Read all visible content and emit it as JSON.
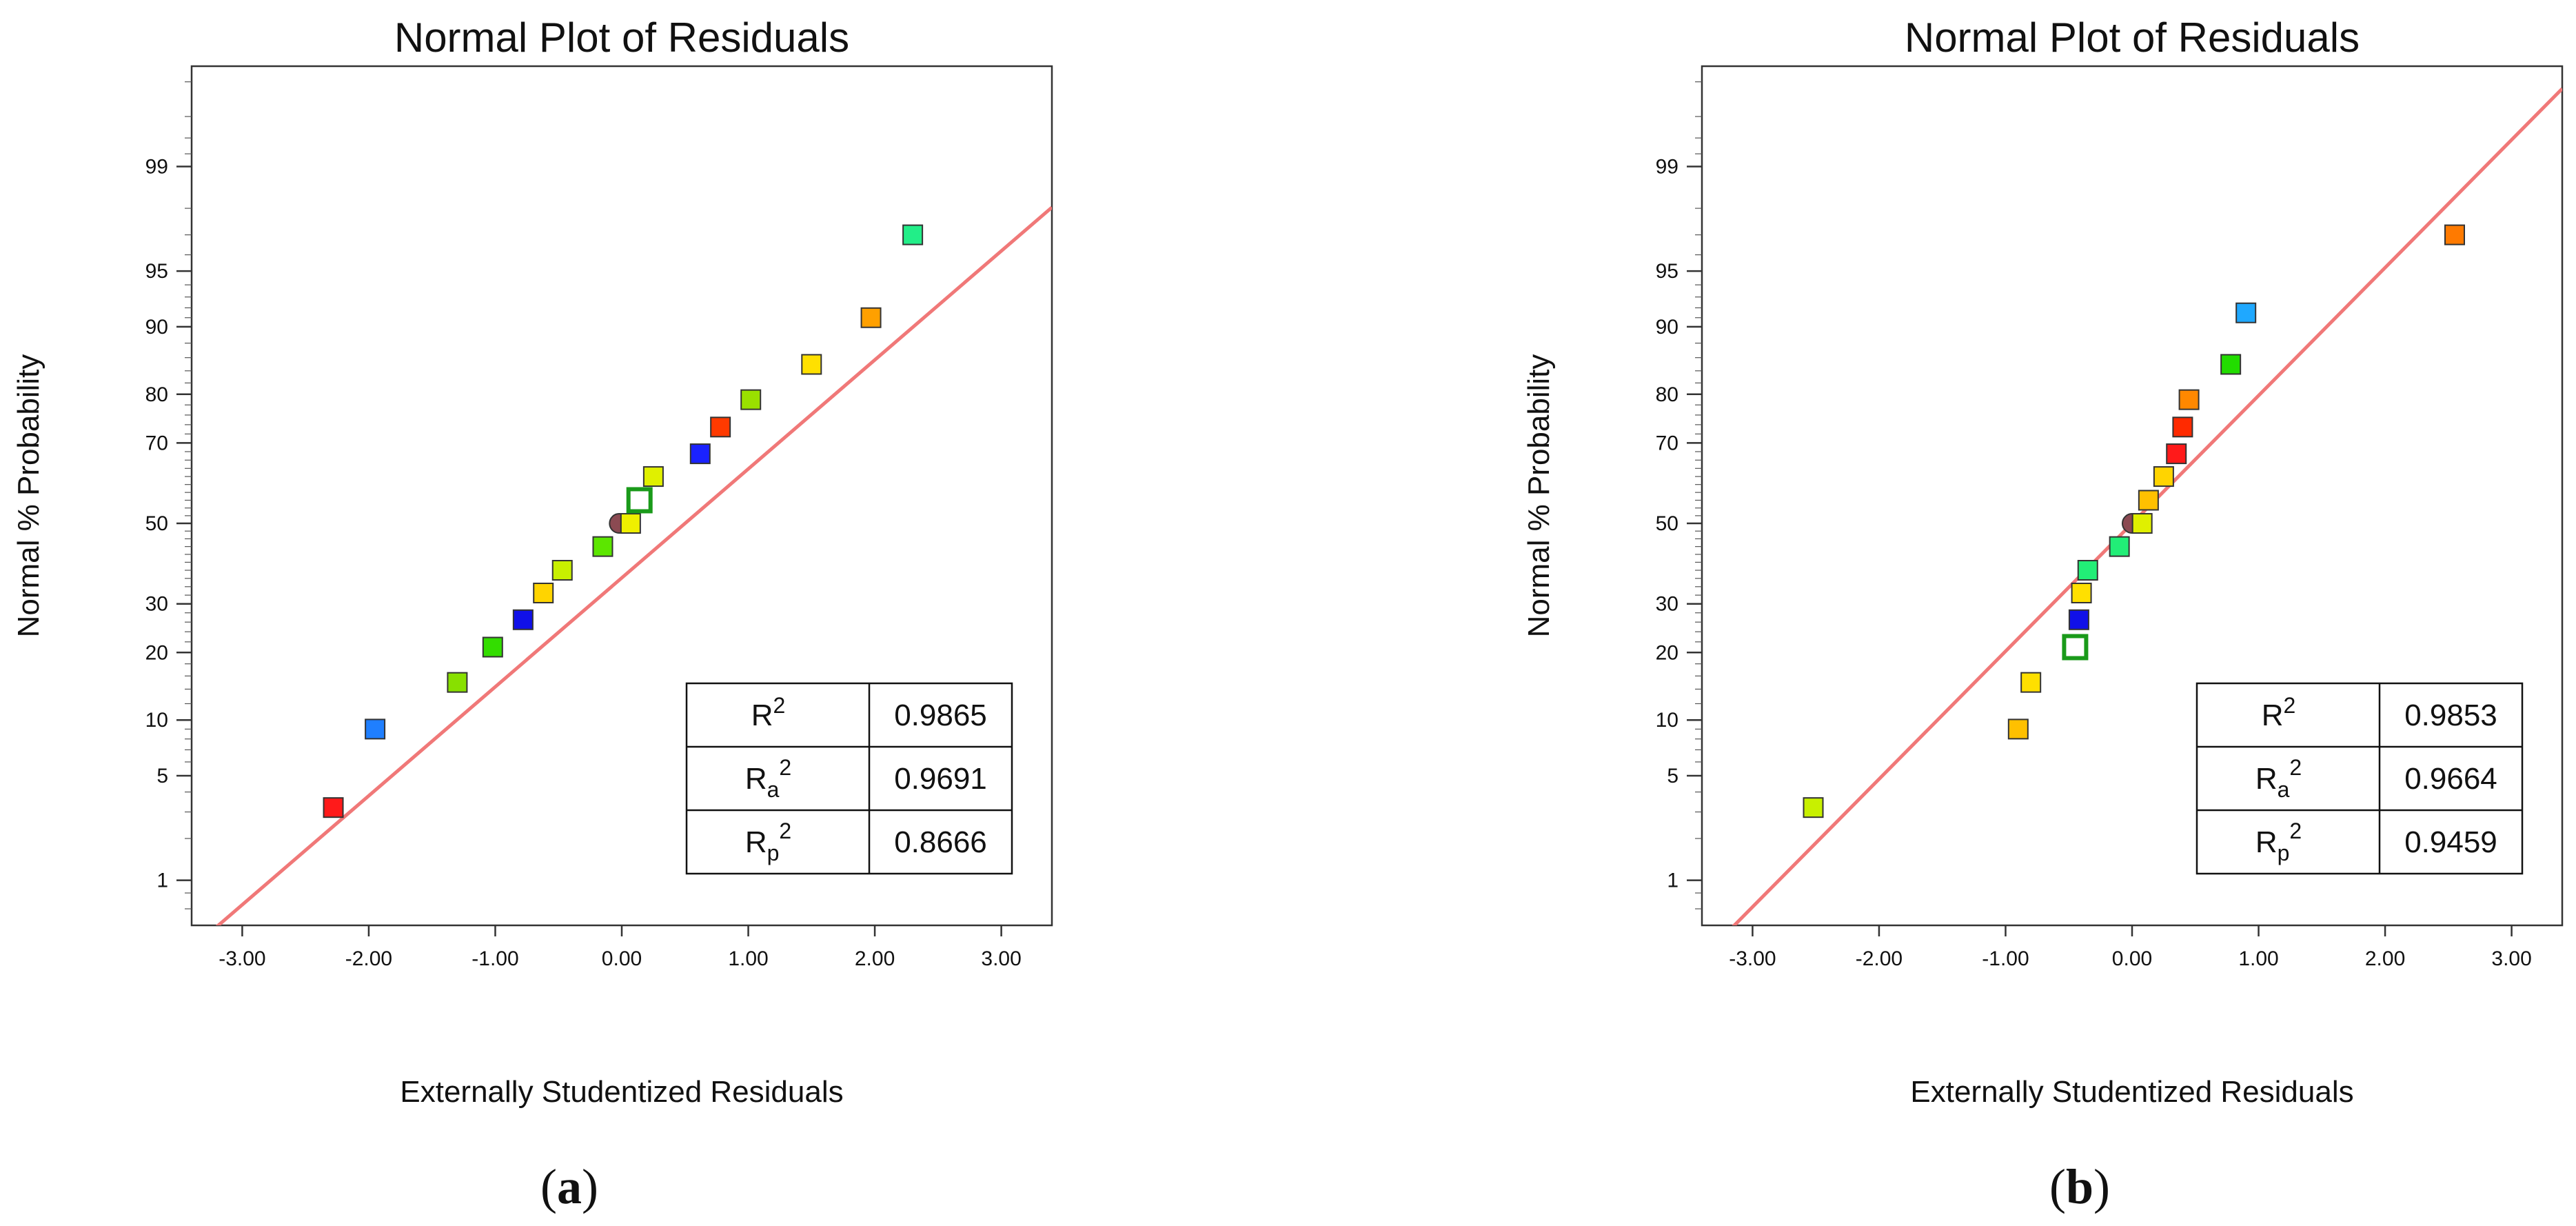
{
  "chart_data": [
    {
      "type": "scatter",
      "panel_label_open": "(",
      "panel_label_letter": "a",
      "panel_label_close": ")",
      "title": "Normal Plot of Residuals",
      "xlabel": "Externally Studentized Residuals",
      "ylabel": "Normal % Probability",
      "xlim": [
        -3.4,
        3.4
      ],
      "x_ticks": [
        "-3.00",
        "-2.00",
        "-1.00",
        "0.00",
        "1.00",
        "2.00",
        "3.00"
      ],
      "y_ticks": [
        "1",
        "5",
        "10",
        "20",
        "30",
        "50",
        "70",
        "80",
        "90",
        "95",
        "99"
      ],
      "fit_line": {
        "slope": 3.52,
        "intercept": 0.5
      },
      "points": [
        {
          "x": -2.28,
          "p": 3.2,
          "color": "#ff1a1a"
        },
        {
          "x": -1.95,
          "p": 9.0,
          "color": "#1f7fff"
        },
        {
          "x": -1.3,
          "p": 15.0,
          "color": "#88e000"
        },
        {
          "x": -1.02,
          "p": 21.0,
          "color": "#33dd00"
        },
        {
          "x": -0.78,
          "p": 26.5,
          "color": "#1010e8"
        },
        {
          "x": -0.62,
          "p": 32.5,
          "color": "#ffd400"
        },
        {
          "x": -0.47,
          "p": 38.0,
          "color": "#c8f000"
        },
        {
          "x": -0.15,
          "p": 44.0,
          "color": "#5ce600"
        },
        {
          "x": -0.02,
          "p": 50.0,
          "color": "#8b4a52",
          "shape": "circle"
        },
        {
          "x": 0.07,
          "p": 50.0,
          "color": "#f0f000"
        },
        {
          "x": 0.14,
          "p": 56.0,
          "color": "#ffffff",
          "stroke": "#1a9a1a",
          "hollow": true
        },
        {
          "x": 0.25,
          "p": 62.0,
          "color": "#e0f000"
        },
        {
          "x": 0.62,
          "p": 67.5,
          "color": "#1a22ff"
        },
        {
          "x": 0.78,
          "p": 73.5,
          "color": "#ff3a00"
        },
        {
          "x": 1.02,
          "p": 79.0,
          "color": "#9ae000"
        },
        {
          "x": 1.5,
          "p": 85.0,
          "color": "#ffe000"
        },
        {
          "x": 1.97,
          "p": 91.0,
          "color": "#ffa000"
        },
        {
          "x": 2.3,
          "p": 97.0,
          "color": "#22ee88"
        }
      ],
      "fit_table": [
        {
          "label": "R",
          "sub": "",
          "sup": "2",
          "value": "0.9865"
        },
        {
          "label": "R",
          "sub": "a",
          "sup": "2",
          "value": "0.9691"
        },
        {
          "label": "R",
          "sub": "p",
          "sup": "2",
          "value": "0.8666"
        }
      ]
    },
    {
      "type": "scatter",
      "panel_label_open": "(",
      "panel_label_letter": "b",
      "panel_label_close": ")",
      "title": "Normal Plot of Residuals",
      "xlabel": "Externally Studentized Residuals",
      "ylabel": "Normal % Probability",
      "xlim": [
        -3.4,
        3.4
      ],
      "x_ticks": [
        "-3.00",
        "-2.00",
        "-1.00",
        "0.00",
        "1.00",
        "2.00",
        "3.00"
      ],
      "y_ticks": [
        "1",
        "5",
        "10",
        "20",
        "30",
        "50",
        "70",
        "80",
        "90",
        "95",
        "99"
      ],
      "fit_line": {
        "slope": 3.0,
        "intercept": 0.0
      },
      "points": [
        {
          "x": -2.52,
          "p": 3.2,
          "color": "#c8f000"
        },
        {
          "x": -0.9,
          "p": 9.0,
          "color": "#ffc000"
        },
        {
          "x": -0.8,
          "p": 15.0,
          "color": "#ffe000"
        },
        {
          "x": -0.45,
          "p": 21.0,
          "color": "#ffffff",
          "stroke": "#1a9a1a",
          "hollow": true
        },
        {
          "x": -0.42,
          "p": 26.5,
          "color": "#1010e8"
        },
        {
          "x": -0.4,
          "p": 32.5,
          "color": "#ffe000"
        },
        {
          "x": -0.35,
          "p": 38.0,
          "color": "#22ee77"
        },
        {
          "x": -0.1,
          "p": 44.0,
          "color": "#22ee77"
        },
        {
          "x": 0.0,
          "p": 50.0,
          "color": "#8b4a52",
          "shape": "circle"
        },
        {
          "x": 0.08,
          "p": 50.0,
          "color": "#e0f000"
        },
        {
          "x": 0.13,
          "p": 56.0,
          "color": "#ffc000"
        },
        {
          "x": 0.25,
          "p": 62.0,
          "color": "#ffd400"
        },
        {
          "x": 0.35,
          "p": 67.5,
          "color": "#ff1a1a"
        },
        {
          "x": 0.4,
          "p": 73.5,
          "color": "#ff2a00"
        },
        {
          "x": 0.45,
          "p": 79.0,
          "color": "#ff8800"
        },
        {
          "x": 0.78,
          "p": 85.0,
          "color": "#22dd00"
        },
        {
          "x": 0.9,
          "p": 91.5,
          "color": "#1fa8ff"
        },
        {
          "x": 2.55,
          "p": 97.0,
          "color": "#ff7a00"
        }
      ],
      "fit_table": [
        {
          "label": "R",
          "sub": "",
          "sup": "2",
          "value": "0.9853"
        },
        {
          "label": "R",
          "sub": "a",
          "sup": "2",
          "value": "0.9664"
        },
        {
          "label": "R",
          "sub": "p",
          "sup": "2",
          "value": "0.9459"
        }
      ]
    }
  ]
}
